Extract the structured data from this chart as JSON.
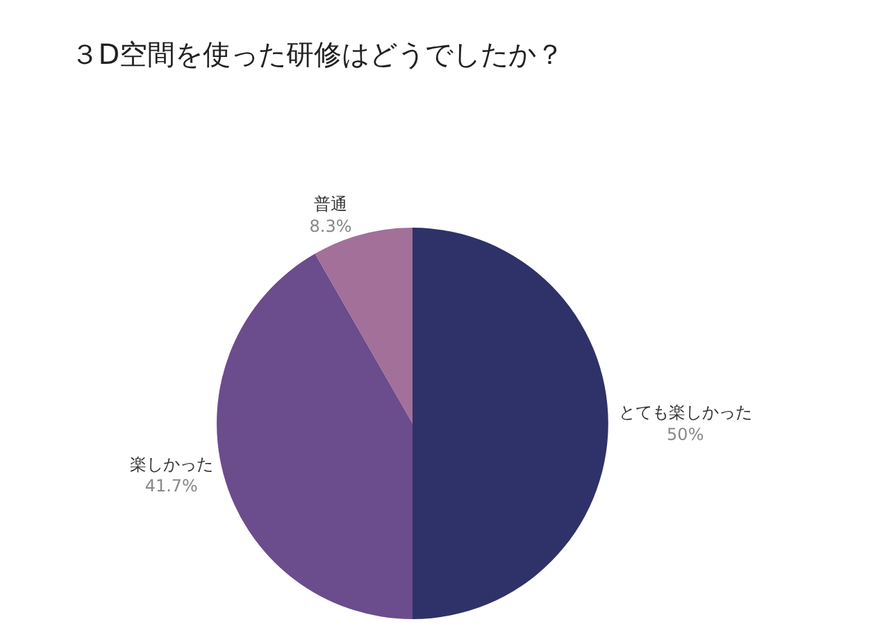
{
  "chart_data": {
    "type": "pie",
    "title": "３D空間を使った研修はどうでしたか？",
    "categories": [
      "とても楽しかった",
      "楽しかった",
      "普通"
    ],
    "values": [
      50,
      41.7,
      8.3
    ],
    "value_labels": [
      "50%",
      "41.7%",
      "8.3%"
    ],
    "colors": [
      "#2e3268",
      "#6b4c8c",
      "#a27098"
    ],
    "legend": false
  }
}
